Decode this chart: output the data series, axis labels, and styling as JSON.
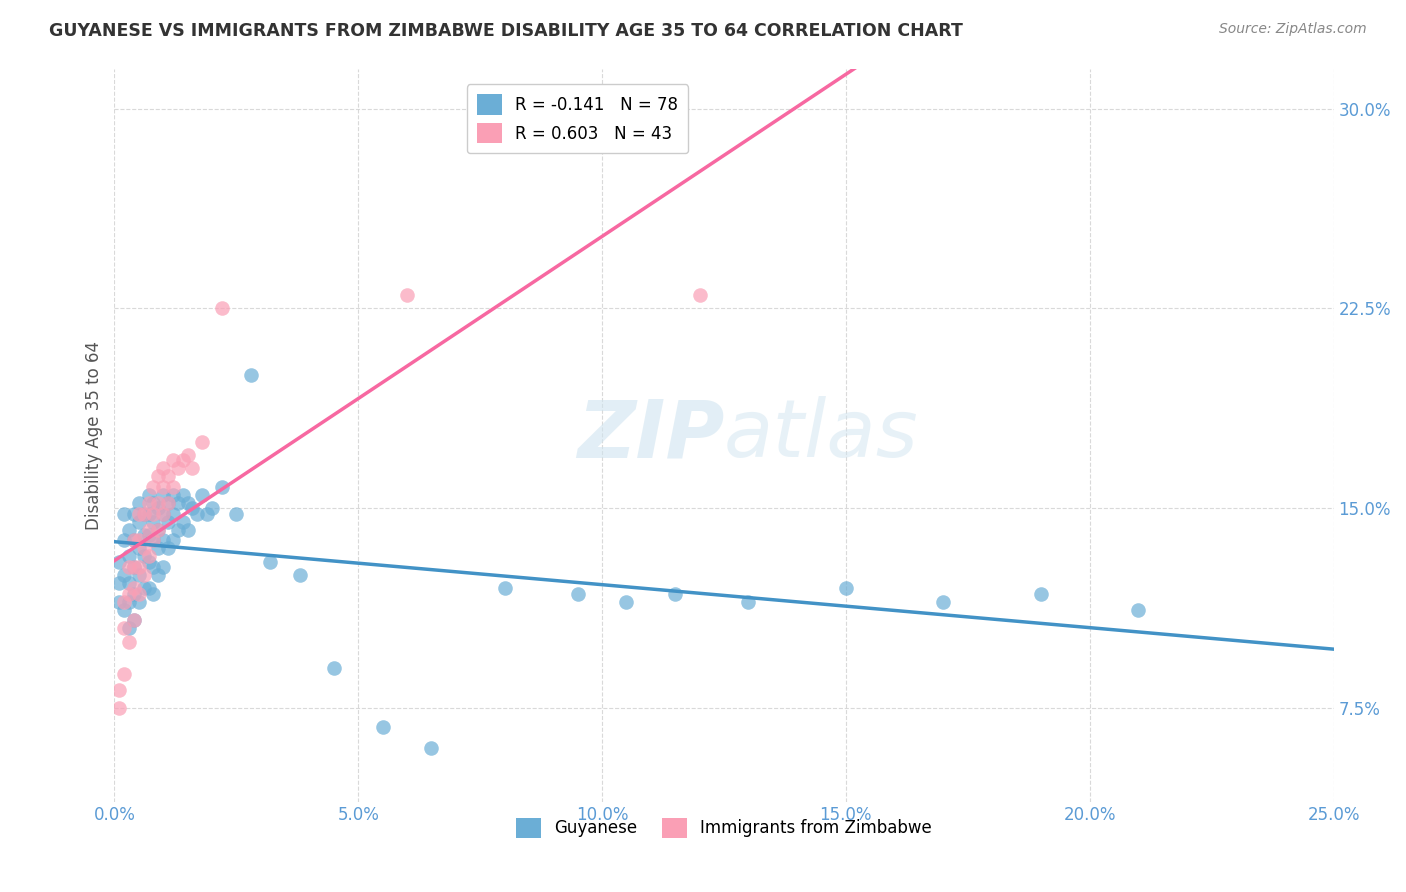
{
  "title": "GUYANESE VS IMMIGRANTS FROM ZIMBABWE DISABILITY AGE 35 TO 64 CORRELATION CHART",
  "source": "Source: ZipAtlas.com",
  "ylabel_label": "Disability Age 35 to 64",
  "legend_label1": "Guyanese",
  "legend_label2": "Immigrants from Zimbabwe",
  "R1": -0.141,
  "N1": 78,
  "R2": 0.603,
  "N2": 43,
  "color1": "#6baed6",
  "color2": "#fa9fb5",
  "line_color1": "#4292c6",
  "line_color2": "#f768a1",
  "xlim": [
    0.0,
    0.25
  ],
  "ylim": [
    0.04,
    0.315
  ],
  "watermark_zip": "ZIP",
  "watermark_atlas": "atlas",
  "guyanese_x": [
    0.001,
    0.001,
    0.001,
    0.002,
    0.002,
    0.002,
    0.002,
    0.003,
    0.003,
    0.003,
    0.003,
    0.003,
    0.004,
    0.004,
    0.004,
    0.004,
    0.004,
    0.005,
    0.005,
    0.005,
    0.005,
    0.005,
    0.006,
    0.006,
    0.006,
    0.006,
    0.007,
    0.007,
    0.007,
    0.007,
    0.007,
    0.008,
    0.008,
    0.008,
    0.008,
    0.008,
    0.009,
    0.009,
    0.009,
    0.009,
    0.01,
    0.01,
    0.01,
    0.01,
    0.011,
    0.011,
    0.011,
    0.012,
    0.012,
    0.012,
    0.013,
    0.013,
    0.014,
    0.014,
    0.015,
    0.015,
    0.016,
    0.017,
    0.018,
    0.019,
    0.02,
    0.022,
    0.025,
    0.028,
    0.032,
    0.038,
    0.045,
    0.055,
    0.065,
    0.08,
    0.095,
    0.105,
    0.115,
    0.13,
    0.15,
    0.17,
    0.19,
    0.21
  ],
  "guyanese_y": [
    0.13,
    0.122,
    0.115,
    0.148,
    0.138,
    0.125,
    0.112,
    0.142,
    0.132,
    0.122,
    0.115,
    0.105,
    0.148,
    0.138,
    0.128,
    0.118,
    0.108,
    0.152,
    0.145,
    0.135,
    0.125,
    0.115,
    0.148,
    0.14,
    0.132,
    0.12,
    0.155,
    0.148,
    0.14,
    0.13,
    0.12,
    0.152,
    0.145,
    0.138,
    0.128,
    0.118,
    0.15,
    0.142,
    0.135,
    0.125,
    0.155,
    0.148,
    0.138,
    0.128,
    0.152,
    0.145,
    0.135,
    0.155,
    0.148,
    0.138,
    0.152,
    0.142,
    0.155,
    0.145,
    0.152,
    0.142,
    0.15,
    0.148,
    0.155,
    0.148,
    0.15,
    0.158,
    0.148,
    0.2,
    0.13,
    0.125,
    0.09,
    0.068,
    0.06,
    0.12,
    0.118,
    0.115,
    0.118,
    0.115,
    0.12,
    0.115,
    0.118,
    0.112
  ],
  "zimbabwe_x": [
    0.001,
    0.001,
    0.002,
    0.002,
    0.002,
    0.003,
    0.003,
    0.003,
    0.004,
    0.004,
    0.004,
    0.004,
    0.005,
    0.005,
    0.005,
    0.005,
    0.006,
    0.006,
    0.006,
    0.007,
    0.007,
    0.007,
    0.008,
    0.008,
    0.008,
    0.009,
    0.009,
    0.009,
    0.01,
    0.01,
    0.01,
    0.011,
    0.011,
    0.012,
    0.012,
    0.013,
    0.014,
    0.015,
    0.016,
    0.018,
    0.022,
    0.06,
    0.12
  ],
  "zimbabwe_y": [
    0.075,
    0.082,
    0.088,
    0.105,
    0.115,
    0.1,
    0.118,
    0.128,
    0.108,
    0.12,
    0.128,
    0.138,
    0.118,
    0.128,
    0.138,
    0.148,
    0.125,
    0.135,
    0.148,
    0.132,
    0.142,
    0.152,
    0.138,
    0.148,
    0.158,
    0.142,
    0.152,
    0.162,
    0.148,
    0.158,
    0.165,
    0.152,
    0.162,
    0.158,
    0.168,
    0.165,
    0.168,
    0.17,
    0.165,
    0.175,
    0.225,
    0.23,
    0.23
  ]
}
